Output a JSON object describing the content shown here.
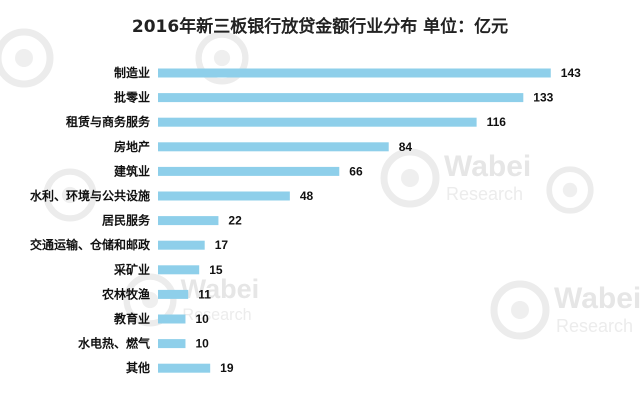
{
  "watermark": {
    "brand": "Wabei",
    "brand_sub": "Research"
  },
  "chart_data": {
    "type": "bar",
    "orientation": "horizontal",
    "title": "2016年新三板银行放贷金额行业分布 单位：亿元",
    "categories": [
      "制造业",
      "批零业",
      "租赁与商务服务",
      "房地产",
      "建筑业",
      "水利、环境与公共设施",
      "居民服务",
      "交通运输、仓储和邮政",
      "采矿业",
      "农林牧渔",
      "教育业",
      "水电热、燃气",
      "其他"
    ],
    "values": [
      143,
      133,
      116,
      84,
      66,
      48,
      22,
      17,
      15,
      11,
      10,
      10,
      19
    ],
    "xlim": [
      0,
      150
    ],
    "grid": false,
    "legend": "none",
    "colors": {
      "bar": "#8ecfea",
      "text": "#111111",
      "title": "#222222"
    }
  }
}
